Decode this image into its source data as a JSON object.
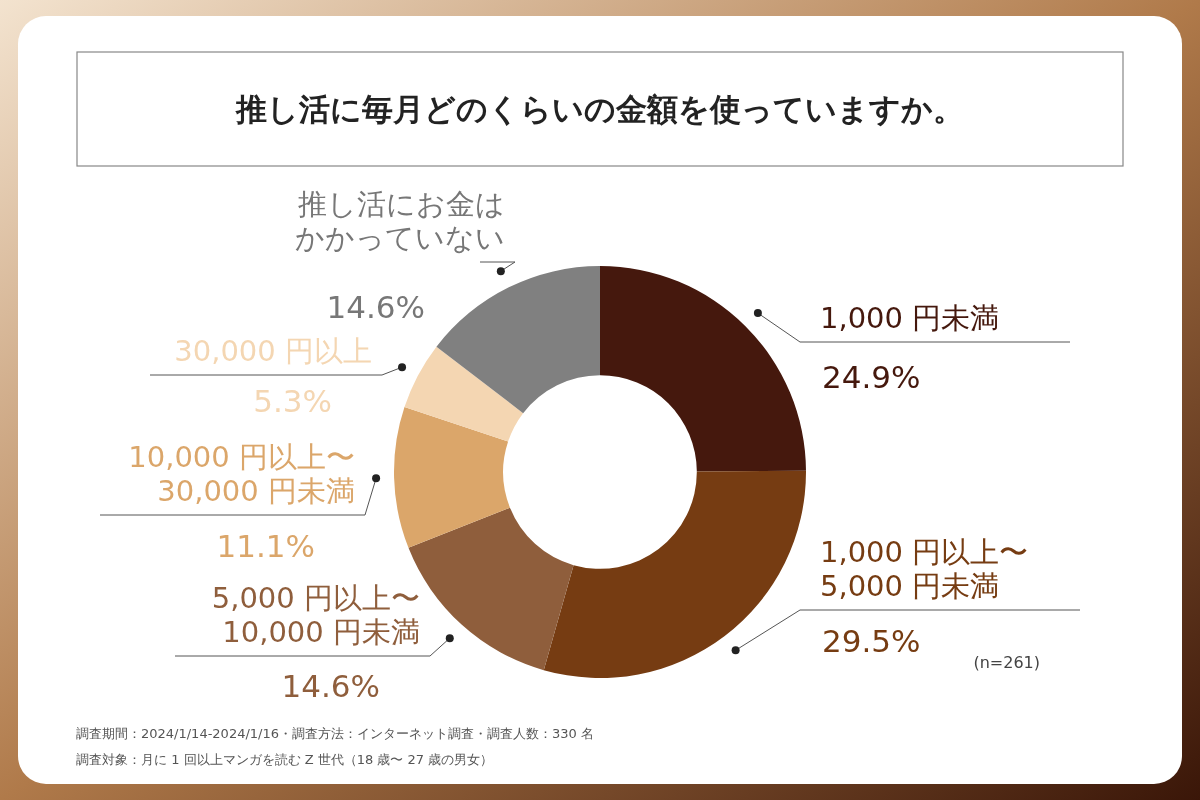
{
  "chart_data": {
    "type": "donut",
    "title": "推し活に毎月どのくらいの金額を使っていますか。",
    "categories": [
      "1,000 円未満",
      "1,000 円以上〜5,000 円未満",
      "5,000 円以上〜10,000 円未満",
      "10,000 円以上〜30,000 円未満",
      "30,000 円以上",
      "推し活にお金はかかっていない"
    ],
    "values": [
      24.9,
      29.5,
      14.6,
      11.1,
      5.3,
      14.6
    ],
    "value_labels": [
      "24.9%",
      "29.5%",
      "14.6%",
      "11.1%",
      "5.3%",
      "14.6%"
    ],
    "colors": [
      "#45180d",
      "#763c12",
      "#8f5e3c",
      "#dba66a",
      "#f4d6b2",
      "#808080"
    ],
    "annotations": [
      "(n=261)",
      "調査期間：2024/1/14-2024/1/16・調査方法：インターネット調査・調査人数：330 名",
      "調査対象：月に 1 回以上マンガを読む Z 世代（18 歳〜 27 歳の男女）"
    ]
  }
}
